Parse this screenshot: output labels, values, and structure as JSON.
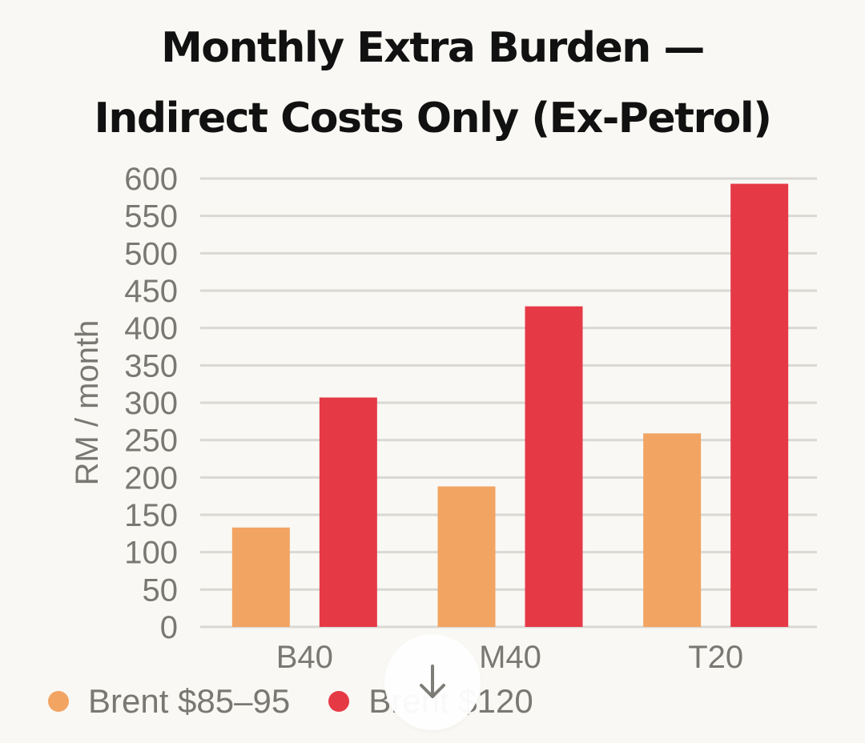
{
  "title_lines": [
    "Monthly Extra Burden —",
    "Indirect Costs Only (Ex-Petrol)"
  ],
  "colors": {
    "series1": "#f2a462",
    "series2": "#e63946",
    "grid": "#d9d8d3",
    "text": "#7a7873"
  },
  "scroll_button": {
    "icon": "arrow-down-icon"
  },
  "chart_data": {
    "type": "bar",
    "title": "Monthly Extra Burden — Indirect Costs Only (Ex-Petrol)",
    "categories": [
      "B40",
      "M40",
      "T20"
    ],
    "series": [
      {
        "name": "Brent $85–95",
        "values": [
          133,
          188,
          259
        ]
      },
      {
        "name": "Brent $120",
        "values": [
          307,
          429,
          593
        ]
      }
    ],
    "xlabel": "",
    "ylabel": "RM / month",
    "ylim": [
      0,
      600
    ],
    "yticks": [
      0,
      50,
      100,
      150,
      200,
      250,
      300,
      350,
      400,
      450,
      500,
      550,
      600
    ],
    "grid": true,
    "legend_position": "bottom-left"
  }
}
